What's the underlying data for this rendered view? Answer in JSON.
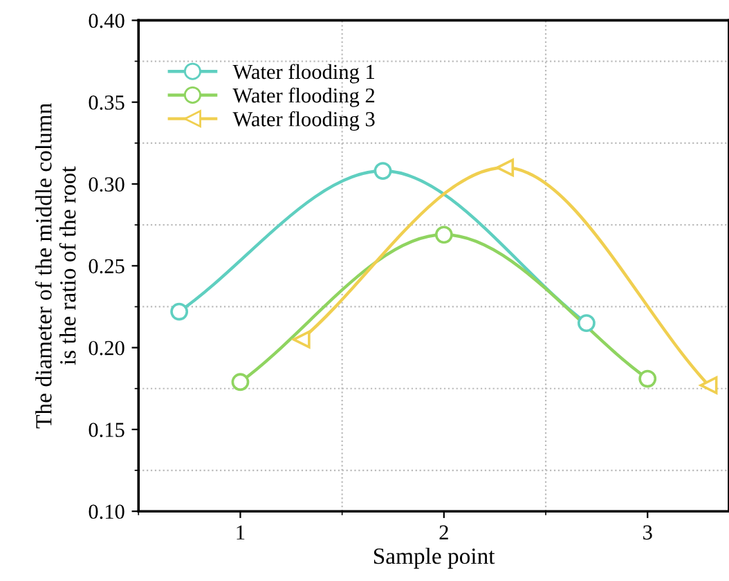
{
  "chart_data": {
    "type": "line",
    "xlabel": "Sample point",
    "ylabel": "The diameter of the middle column\nis the ratio of the root",
    "xlim": [
      0.5,
      3.4
    ],
    "xticks": [
      1,
      2,
      3
    ],
    "ylim": [
      0.1,
      0.4
    ],
    "yticks": [
      {
        "value": 0.1,
        "label": "0.10"
      },
      0.15,
      {
        "value": 0.2,
        "label": "0.20"
      },
      0.25,
      {
        "value": 0.3,
        "label": "0.30"
      },
      0.35,
      {
        "value": 0.4,
        "label": "0.40"
      }
    ],
    "grid": true,
    "legend": "top left",
    "series": [
      {
        "name": "Water flooding 1",
        "color": "#5fcfc0",
        "marker": "circle",
        "x": [
          0.7,
          1.7,
          2.7
        ],
        "values": [
          0.222,
          0.308,
          0.215
        ]
      },
      {
        "name": "Water flooding 2",
        "color": "#8fd460",
        "marker": "circle",
        "x": [
          1,
          2,
          3
        ],
        "values": [
          0.179,
          0.269,
          0.181
        ]
      },
      {
        "name": "Water flooding 3",
        "color": "#f0cf50",
        "marker": "triangle",
        "x": [
          1.3,
          2.3,
          3.3
        ],
        "values": [
          0.205,
          0.31,
          0.177
        ]
      }
    ]
  }
}
